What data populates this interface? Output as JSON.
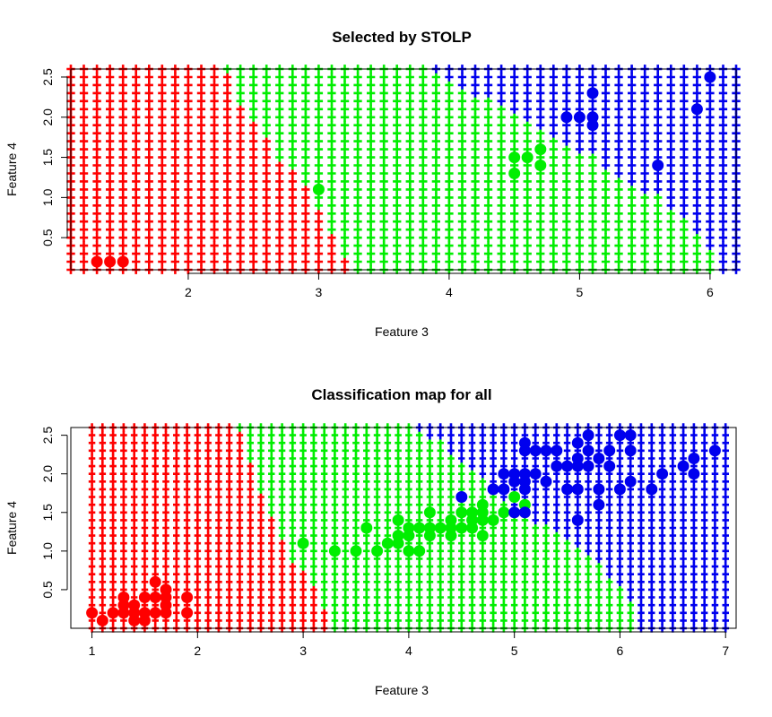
{
  "chart_data": [
    {
      "type": "scatter",
      "title": "Selected by STOLP",
      "xlabel": "Feature 3",
      "ylabel": "Feature 4",
      "xlim": [
        1.1,
        6.2
      ],
      "ylim": [
        0.1,
        2.6
      ],
      "xticks": [
        2,
        3,
        4,
        5,
        6
      ],
      "xtick_labels": [
        "2",
        "3",
        "4",
        "5",
        "6"
      ],
      "yticks": [
        0.5,
        1.0,
        1.5,
        2.0,
        2.5
      ],
      "ytick_labels": [
        "0.5",
        "1.0",
        "1.5",
        "2.0",
        "2.5"
      ],
      "classes": [
        {
          "color": "#ff0000"
        },
        {
          "color": "#00ee00"
        },
        {
          "color": "#0000ee"
        }
      ],
      "map": {
        "x_step": 0.1,
        "y_step": 0.1,
        "y_start": 0.1,
        "y_end": 2.6,
        "left_limit": 1.1,
        "right_limit": 6.2,
        "boundary_red_green": [
          [
            3.3,
            0.1
          ],
          [
            3.2,
            0.3
          ],
          [
            3.1,
            0.6
          ],
          [
            3.0,
            0.9
          ],
          [
            2.9,
            1.2
          ],
          [
            2.7,
            1.5
          ],
          [
            2.6,
            1.8
          ],
          [
            2.4,
            2.2
          ],
          [
            2.3,
            2.6
          ]
        ],
        "boundary_green_blue": [
          [
            6.1,
            0.1
          ],
          [
            5.9,
            0.6
          ],
          [
            5.7,
            0.9
          ],
          [
            5.5,
            1.1
          ],
          [
            5.2,
            1.4
          ],
          [
            4.9,
            1.7
          ],
          [
            4.7,
            1.9
          ],
          [
            4.5,
            2.1
          ],
          [
            4.2,
            2.3
          ],
          [
            3.9,
            2.6
          ]
        ]
      },
      "points": [
        {
          "x": 1.3,
          "y": 0.2,
          "class": 0
        },
        {
          "x": 1.4,
          "y": 0.2,
          "class": 0
        },
        {
          "x": 1.5,
          "y": 0.2,
          "class": 0
        },
        {
          "x": 3.0,
          "y": 1.1,
          "class": 1
        },
        {
          "x": 4.5,
          "y": 1.5,
          "class": 1
        },
        {
          "x": 4.5,
          "y": 1.3,
          "class": 1
        },
        {
          "x": 4.6,
          "y": 1.5,
          "class": 1
        },
        {
          "x": 4.7,
          "y": 1.6,
          "class": 1
        },
        {
          "x": 4.7,
          "y": 1.4,
          "class": 1
        },
        {
          "x": 4.9,
          "y": 2.0,
          "class": 2
        },
        {
          "x": 5.0,
          "y": 2.0,
          "class": 2
        },
        {
          "x": 5.1,
          "y": 2.3,
          "class": 2
        },
        {
          "x": 5.1,
          "y": 2.0,
          "class": 2
        },
        {
          "x": 5.1,
          "y": 1.9,
          "class": 2
        },
        {
          "x": 5.6,
          "y": 1.4,
          "class": 2
        },
        {
          "x": 5.9,
          "y": 2.1,
          "class": 2
        },
        {
          "x": 6.0,
          "y": 2.5,
          "class": 2
        }
      ]
    },
    {
      "type": "scatter",
      "title": "Classification map for all",
      "xlabel": "Feature 3",
      "ylabel": "Feature 4",
      "xlim": [
        0.8,
        7.1
      ],
      "ylim": [
        0.0,
        2.6
      ],
      "xticks": [
        1,
        2,
        3,
        4,
        5,
        6,
        7
      ],
      "xtick_labels": [
        "1",
        "2",
        "3",
        "4",
        "5",
        "6",
        "7"
      ],
      "yticks": [
        0.5,
        1.0,
        1.5,
        2.0,
        2.5
      ],
      "ytick_labels": [
        "0.5",
        "1.0",
        "1.5",
        "2.0",
        "2.5"
      ],
      "classes": [
        {
          "color": "#ff0000"
        },
        {
          "color": "#00ee00"
        },
        {
          "color": "#0000ee"
        }
      ],
      "map": {
        "x_step": 0.1,
        "y_step": 0.1,
        "y_start": 0.0,
        "y_end": 2.6,
        "left_limit": 1.0,
        "right_limit": 7.0,
        "boundary_red_green": [
          [
            3.3,
            0.0
          ],
          [
            3.2,
            0.3
          ],
          [
            3.1,
            0.6
          ],
          [
            2.9,
            0.9
          ],
          [
            2.8,
            1.2
          ],
          [
            2.7,
            1.5
          ],
          [
            2.6,
            1.8
          ],
          [
            2.5,
            2.2
          ],
          [
            2.4,
            2.6
          ]
        ],
        "boundary_green_blue": [
          [
            6.2,
            0.0
          ],
          [
            6.1,
            0.4
          ],
          [
            5.9,
            0.7
          ],
          [
            5.7,
            1.0
          ],
          [
            5.5,
            1.2
          ],
          [
            5.2,
            1.4
          ],
          [
            5.0,
            1.5
          ],
          [
            4.9,
            1.7
          ],
          [
            4.8,
            1.9
          ],
          [
            4.6,
            2.1
          ],
          [
            4.4,
            2.3
          ],
          [
            4.2,
            2.5
          ],
          [
            4.1,
            2.6
          ]
        ]
      },
      "points": [
        {
          "x": 1.0,
          "y": 0.2,
          "class": 0
        },
        {
          "x": 1.1,
          "y": 0.1,
          "class": 0
        },
        {
          "x": 1.2,
          "y": 0.2,
          "class": 0
        },
        {
          "x": 1.3,
          "y": 0.2,
          "class": 0
        },
        {
          "x": 1.3,
          "y": 0.3,
          "class": 0
        },
        {
          "x": 1.3,
          "y": 0.4,
          "class": 0
        },
        {
          "x": 1.4,
          "y": 0.1,
          "class": 0
        },
        {
          "x": 1.4,
          "y": 0.2,
          "class": 0
        },
        {
          "x": 1.4,
          "y": 0.3,
          "class": 0
        },
        {
          "x": 1.5,
          "y": 0.1,
          "class": 0
        },
        {
          "x": 1.5,
          "y": 0.2,
          "class": 0
        },
        {
          "x": 1.5,
          "y": 0.4,
          "class": 0
        },
        {
          "x": 1.6,
          "y": 0.2,
          "class": 0
        },
        {
          "x": 1.6,
          "y": 0.4,
          "class": 0
        },
        {
          "x": 1.6,
          "y": 0.6,
          "class": 0
        },
        {
          "x": 1.7,
          "y": 0.2,
          "class": 0
        },
        {
          "x": 1.7,
          "y": 0.3,
          "class": 0
        },
        {
          "x": 1.7,
          "y": 0.4,
          "class": 0
        },
        {
          "x": 1.7,
          "y": 0.5,
          "class": 0
        },
        {
          "x": 1.9,
          "y": 0.2,
          "class": 0
        },
        {
          "x": 1.9,
          "y": 0.4,
          "class": 0
        },
        {
          "x": 3.0,
          "y": 1.1,
          "class": 1
        },
        {
          "x": 3.3,
          "y": 1.0,
          "class": 1
        },
        {
          "x": 3.5,
          "y": 1.0,
          "class": 1
        },
        {
          "x": 3.6,
          "y": 1.3,
          "class": 1
        },
        {
          "x": 3.7,
          "y": 1.0,
          "class": 1
        },
        {
          "x": 3.8,
          "y": 1.1,
          "class": 1
        },
        {
          "x": 3.9,
          "y": 1.1,
          "class": 1
        },
        {
          "x": 3.9,
          "y": 1.2,
          "class": 1
        },
        {
          "x": 3.9,
          "y": 1.4,
          "class": 1
        },
        {
          "x": 4.0,
          "y": 1.0,
          "class": 1
        },
        {
          "x": 4.0,
          "y": 1.2,
          "class": 1
        },
        {
          "x": 4.0,
          "y": 1.3,
          "class": 1
        },
        {
          "x": 4.1,
          "y": 1.0,
          "class": 1
        },
        {
          "x": 4.1,
          "y": 1.3,
          "class": 1
        },
        {
          "x": 4.2,
          "y": 1.2,
          "class": 1
        },
        {
          "x": 4.2,
          "y": 1.3,
          "class": 1
        },
        {
          "x": 4.2,
          "y": 1.5,
          "class": 1
        },
        {
          "x": 4.3,
          "y": 1.3,
          "class": 1
        },
        {
          "x": 4.4,
          "y": 1.2,
          "class": 1
        },
        {
          "x": 4.4,
          "y": 1.3,
          "class": 1
        },
        {
          "x": 4.4,
          "y": 1.4,
          "class": 1
        },
        {
          "x": 4.5,
          "y": 1.3,
          "class": 1
        },
        {
          "x": 4.5,
          "y": 1.5,
          "class": 1
        },
        {
          "x": 4.6,
          "y": 1.3,
          "class": 1
        },
        {
          "x": 4.6,
          "y": 1.4,
          "class": 1
        },
        {
          "x": 4.6,
          "y": 1.5,
          "class": 1
        },
        {
          "x": 4.7,
          "y": 1.2,
          "class": 1
        },
        {
          "x": 4.7,
          "y": 1.4,
          "class": 1
        },
        {
          "x": 4.7,
          "y": 1.5,
          "class": 1
        },
        {
          "x": 4.7,
          "y": 1.6,
          "class": 1
        },
        {
          "x": 4.8,
          "y": 1.4,
          "class": 1
        },
        {
          "x": 4.9,
          "y": 1.5,
          "class": 1
        },
        {
          "x": 5.0,
          "y": 1.7,
          "class": 1
        },
        {
          "x": 5.1,
          "y": 1.6,
          "class": 1
        },
        {
          "x": 4.5,
          "y": 1.7,
          "class": 2
        },
        {
          "x": 4.8,
          "y": 1.8,
          "class": 2
        },
        {
          "x": 4.9,
          "y": 1.8,
          "class": 2
        },
        {
          "x": 4.9,
          "y": 2.0,
          "class": 2
        },
        {
          "x": 5.0,
          "y": 1.5,
          "class": 2
        },
        {
          "x": 5.0,
          "y": 1.9,
          "class": 2
        },
        {
          "x": 5.0,
          "y": 2.0,
          "class": 2
        },
        {
          "x": 5.1,
          "y": 1.5,
          "class": 2
        },
        {
          "x": 5.1,
          "y": 1.8,
          "class": 2
        },
        {
          "x": 5.1,
          "y": 1.9,
          "class": 2
        },
        {
          "x": 5.1,
          "y": 2.0,
          "class": 2
        },
        {
          "x": 5.1,
          "y": 2.3,
          "class": 2
        },
        {
          "x": 5.1,
          "y": 2.4,
          "class": 2
        },
        {
          "x": 5.2,
          "y": 2.0,
          "class": 2
        },
        {
          "x": 5.2,
          "y": 2.3,
          "class": 2
        },
        {
          "x": 5.3,
          "y": 1.9,
          "class": 2
        },
        {
          "x": 5.3,
          "y": 2.3,
          "class": 2
        },
        {
          "x": 5.4,
          "y": 2.1,
          "class": 2
        },
        {
          "x": 5.4,
          "y": 2.3,
          "class": 2
        },
        {
          "x": 5.5,
          "y": 1.8,
          "class": 2
        },
        {
          "x": 5.5,
          "y": 2.1,
          "class": 2
        },
        {
          "x": 5.6,
          "y": 1.4,
          "class": 2
        },
        {
          "x": 5.6,
          "y": 1.8,
          "class": 2
        },
        {
          "x": 5.6,
          "y": 2.1,
          "class": 2
        },
        {
          "x": 5.6,
          "y": 2.2,
          "class": 2
        },
        {
          "x": 5.6,
          "y": 2.4,
          "class": 2
        },
        {
          "x": 5.7,
          "y": 2.1,
          "class": 2
        },
        {
          "x": 5.7,
          "y": 2.3,
          "class": 2
        },
        {
          "x": 5.7,
          "y": 2.5,
          "class": 2
        },
        {
          "x": 5.8,
          "y": 1.6,
          "class": 2
        },
        {
          "x": 5.8,
          "y": 1.8,
          "class": 2
        },
        {
          "x": 5.8,
          "y": 2.2,
          "class": 2
        },
        {
          "x": 5.9,
          "y": 2.1,
          "class": 2
        },
        {
          "x": 5.9,
          "y": 2.3,
          "class": 2
        },
        {
          "x": 6.0,
          "y": 1.8,
          "class": 2
        },
        {
          "x": 6.0,
          "y": 2.5,
          "class": 2
        },
        {
          "x": 6.1,
          "y": 1.9,
          "class": 2
        },
        {
          "x": 6.1,
          "y": 2.3,
          "class": 2
        },
        {
          "x": 6.1,
          "y": 2.5,
          "class": 2
        },
        {
          "x": 6.3,
          "y": 1.8,
          "class": 2
        },
        {
          "x": 6.4,
          "y": 2.0,
          "class": 2
        },
        {
          "x": 6.6,
          "y": 2.1,
          "class": 2
        },
        {
          "x": 6.7,
          "y": 2.0,
          "class": 2
        },
        {
          "x": 6.7,
          "y": 2.2,
          "class": 2
        },
        {
          "x": 6.9,
          "y": 2.3,
          "class": 2
        }
      ]
    }
  ]
}
